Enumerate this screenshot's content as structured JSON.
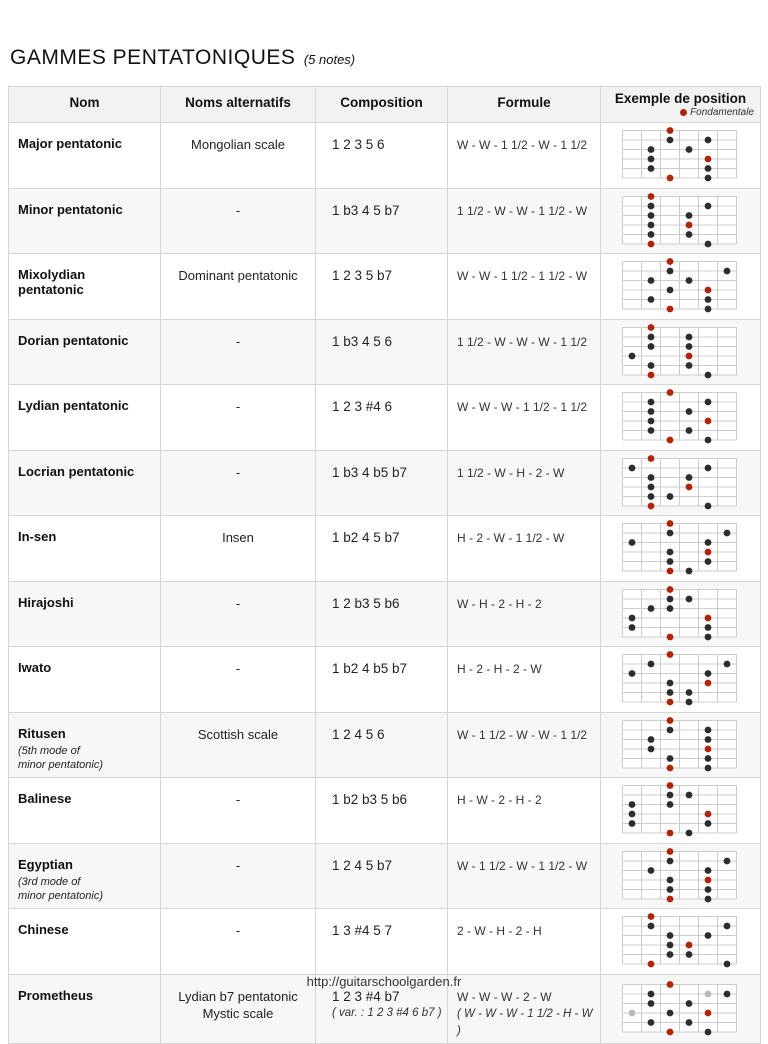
{
  "title": "GAMMES PENTATONIQUES",
  "title_suffix": "(5 notes)",
  "legend_label": "Fondamentale",
  "footer": "http://guitarschoolgarden.fr",
  "colors": {
    "root": "#b02508",
    "note": "#2d2d2d",
    "variant": "#b9b9b9",
    "grid": "#cccccc"
  },
  "columns": {
    "name": "Nom",
    "alt": "Noms alternatifs",
    "composition": "Composition",
    "formula": "Formule",
    "diagram": "Exemple de position"
  },
  "rows": [
    {
      "name": "Major pentatonic",
      "subtitle": "",
      "alt": "Mongolian scale",
      "alt2": "",
      "composition": "1 2 3 5 6",
      "composition_var": "",
      "formula": "W - W - 1 1/2 - W - 1 1/2",
      "formula_var": "",
      "diagram": [
        [
          1,
          3,
          "R"
        ],
        [
          2,
          3,
          "N"
        ],
        [
          2,
          5,
          "N"
        ],
        [
          3,
          2,
          "N"
        ],
        [
          3,
          4,
          "N"
        ],
        [
          4,
          2,
          "N"
        ],
        [
          4,
          5,
          "R"
        ],
        [
          5,
          2,
          "N"
        ],
        [
          5,
          5,
          "N"
        ],
        [
          6,
          3,
          "R"
        ],
        [
          6,
          5,
          "N"
        ]
      ]
    },
    {
      "name": "Minor pentatonic",
      "subtitle": "",
      "alt": "-",
      "alt2": "",
      "composition": "1 b3 4 5 b7",
      "composition_var": "",
      "formula": "1 1/2 - W - W - 1 1/2 - W",
      "formula_var": "",
      "diagram": [
        [
          1,
          2,
          "R"
        ],
        [
          2,
          2,
          "N"
        ],
        [
          2,
          5,
          "N"
        ],
        [
          3,
          2,
          "N"
        ],
        [
          3,
          4,
          "N"
        ],
        [
          4,
          2,
          "N"
        ],
        [
          4,
          4,
          "R"
        ],
        [
          5,
          2,
          "N"
        ],
        [
          5,
          4,
          "N"
        ],
        [
          6,
          2,
          "R"
        ],
        [
          6,
          5,
          "N"
        ]
      ]
    },
    {
      "name": "Mixolydian pentatonic",
      "subtitle": "",
      "alt": "Dominant pentatonic",
      "alt2": "",
      "composition": "1 2 3 5 b7",
      "composition_var": "",
      "formula": "W - W - 1 1/2 - 1 1/2 - W",
      "formula_var": "",
      "diagram": [
        [
          1,
          3,
          "R"
        ],
        [
          2,
          3,
          "N"
        ],
        [
          2,
          6,
          "N"
        ],
        [
          3,
          2,
          "N"
        ],
        [
          3,
          4,
          "N"
        ],
        [
          4,
          3,
          "N"
        ],
        [
          4,
          5,
          "R"
        ],
        [
          5,
          2,
          "N"
        ],
        [
          5,
          5,
          "N"
        ],
        [
          6,
          3,
          "R"
        ],
        [
          6,
          5,
          "N"
        ]
      ]
    },
    {
      "name": "Dorian pentatonic",
      "subtitle": "",
      "alt": "-",
      "alt2": "",
      "composition": "1 b3 4 5 6",
      "composition_var": "",
      "formula": "1 1/2 - W - W - W - 1 1/2",
      "formula_var": "",
      "diagram": [
        [
          1,
          2,
          "R"
        ],
        [
          2,
          2,
          "N"
        ],
        [
          2,
          4,
          "N"
        ],
        [
          3,
          2,
          "N"
        ],
        [
          3,
          4,
          "N"
        ],
        [
          4,
          1,
          "N"
        ],
        [
          4,
          4,
          "R"
        ],
        [
          5,
          2,
          "N"
        ],
        [
          5,
          4,
          "N"
        ],
        [
          6,
          2,
          "R"
        ],
        [
          6,
          5,
          "N"
        ]
      ]
    },
    {
      "name": "Lydian pentatonic",
      "subtitle": "",
      "alt": "-",
      "alt2": "",
      "composition": "1 2 3 #4 6",
      "composition_var": "",
      "formula": "W - W - W - 1 1/2 - 1 1/2",
      "formula_var": "",
      "diagram": [
        [
          1,
          3,
          "R"
        ],
        [
          2,
          2,
          "N"
        ],
        [
          2,
          5,
          "N"
        ],
        [
          3,
          2,
          "N"
        ],
        [
          3,
          4,
          "N"
        ],
        [
          4,
          2,
          "N"
        ],
        [
          4,
          5,
          "R"
        ],
        [
          5,
          2,
          "N"
        ],
        [
          5,
          4,
          "N"
        ],
        [
          6,
          3,
          "R"
        ],
        [
          6,
          5,
          "N"
        ]
      ]
    },
    {
      "name": "Locrian pentatonic",
      "subtitle": "",
      "alt": "-",
      "alt2": "",
      "composition": "1 b3 4 b5 b7",
      "composition_var": "",
      "formula": "1 1/2 - W - H - 2 - W",
      "formula_var": "",
      "diagram": [
        [
          1,
          2,
          "R"
        ],
        [
          2,
          1,
          "N"
        ],
        [
          2,
          5,
          "N"
        ],
        [
          3,
          2,
          "N"
        ],
        [
          3,
          4,
          "N"
        ],
        [
          4,
          2,
          "N"
        ],
        [
          4,
          4,
          "R"
        ],
        [
          5,
          2,
          "N"
        ],
        [
          5,
          3,
          "N"
        ],
        [
          6,
          2,
          "R"
        ],
        [
          6,
          5,
          "N"
        ]
      ]
    },
    {
      "name": "In-sen",
      "subtitle": "",
      "alt": "Insen",
      "alt2": "",
      "composition": "1 b2 4 5 b7",
      "composition_var": "",
      "formula": "H - 2 - W - 1 1/2 - W",
      "formula_var": "",
      "diagram": [
        [
          1,
          3,
          "R"
        ],
        [
          2,
          3,
          "N"
        ],
        [
          2,
          6,
          "N"
        ],
        [
          3,
          1,
          "N"
        ],
        [
          3,
          5,
          "N"
        ],
        [
          4,
          3,
          "N"
        ],
        [
          4,
          5,
          "R"
        ],
        [
          5,
          3,
          "N"
        ],
        [
          5,
          5,
          "N"
        ],
        [
          6,
          3,
          "R"
        ],
        [
          6,
          4,
          "N"
        ]
      ]
    },
    {
      "name": "Hirajoshi",
      "subtitle": "",
      "alt": "-",
      "alt2": "",
      "composition": "1 2 b3 5 b6",
      "composition_var": "",
      "formula": "W - H - 2 - H - 2",
      "formula_var": "",
      "diagram": [
        [
          1,
          3,
          "R"
        ],
        [
          2,
          3,
          "N"
        ],
        [
          2,
          4,
          "N"
        ],
        [
          3,
          2,
          "N"
        ],
        [
          3,
          3,
          "N"
        ],
        [
          4,
          1,
          "N"
        ],
        [
          4,
          5,
          "R"
        ],
        [
          5,
          1,
          "N"
        ],
        [
          5,
          5,
          "N"
        ],
        [
          6,
          3,
          "R"
        ],
        [
          6,
          5,
          "N"
        ]
      ]
    },
    {
      "name": "Iwato",
      "subtitle": "",
      "alt": "-",
      "alt2": "",
      "composition": "1 b2 4 b5 b7",
      "composition_var": "",
      "formula": "H - 2 - H - 2 - W",
      "formula_var": "",
      "diagram": [
        [
          1,
          3,
          "R"
        ],
        [
          2,
          2,
          "N"
        ],
        [
          2,
          6,
          "N"
        ],
        [
          3,
          1,
          "N"
        ],
        [
          3,
          5,
          "N"
        ],
        [
          4,
          3,
          "N"
        ],
        [
          4,
          5,
          "R"
        ],
        [
          5,
          3,
          "N"
        ],
        [
          5,
          4,
          "N"
        ],
        [
          6,
          3,
          "R"
        ],
        [
          6,
          4,
          "N"
        ]
      ]
    },
    {
      "name": "Ritusen",
      "subtitle": "(5th mode of\nminor pentatonic)",
      "alt": "Scottish scale",
      "alt2": "",
      "composition": "1 2 4 5 6",
      "composition_var": "",
      "formula": "W - 1 1/2 - W - W - 1 1/2",
      "formula_var": "",
      "diagram": [
        [
          1,
          3,
          "R"
        ],
        [
          2,
          3,
          "N"
        ],
        [
          2,
          5,
          "N"
        ],
        [
          3,
          2,
          "N"
        ],
        [
          3,
          5,
          "N"
        ],
        [
          4,
          2,
          "N"
        ],
        [
          4,
          5,
          "R"
        ],
        [
          5,
          3,
          "N"
        ],
        [
          5,
          5,
          "N"
        ],
        [
          6,
          3,
          "R"
        ],
        [
          6,
          5,
          "N"
        ]
      ]
    },
    {
      "name": "Balinese",
      "subtitle": "",
      "alt": "-",
      "alt2": "",
      "composition": "1 b2 b3 5 b6",
      "composition_var": "",
      "formula": "H - W - 2 - H - 2",
      "formula_var": "",
      "diagram": [
        [
          1,
          3,
          "R"
        ],
        [
          2,
          3,
          "N"
        ],
        [
          2,
          4,
          "N"
        ],
        [
          3,
          1,
          "N"
        ],
        [
          3,
          3,
          "N"
        ],
        [
          4,
          1,
          "N"
        ],
        [
          4,
          5,
          "R"
        ],
        [
          5,
          1,
          "N"
        ],
        [
          5,
          5,
          "N"
        ],
        [
          6,
          3,
          "R"
        ],
        [
          6,
          4,
          "N"
        ]
      ]
    },
    {
      "name": "Egyptian",
      "subtitle": "(3rd mode of\nminor pentatonic)",
      "alt": "-",
      "alt2": "",
      "composition": "1 2 4 5 b7",
      "composition_var": "",
      "formula": "W - 1 1/2 - W - 1 1/2 - W",
      "formula_var": "",
      "diagram": [
        [
          1,
          3,
          "R"
        ],
        [
          2,
          3,
          "N"
        ],
        [
          2,
          6,
          "N"
        ],
        [
          3,
          2,
          "N"
        ],
        [
          3,
          5,
          "N"
        ],
        [
          4,
          3,
          "N"
        ],
        [
          4,
          5,
          "R"
        ],
        [
          5,
          3,
          "N"
        ],
        [
          5,
          5,
          "N"
        ],
        [
          6,
          3,
          "R"
        ],
        [
          6,
          5,
          "N"
        ]
      ]
    },
    {
      "name": "Chinese",
      "subtitle": "",
      "alt": "-",
      "alt2": "",
      "composition": "1 3 #4 5 7",
      "composition_var": "",
      "formula": "2 - W - H - 2 - H",
      "formula_var": "",
      "diagram": [
        [
          1,
          2,
          "R"
        ],
        [
          2,
          2,
          "N"
        ],
        [
          2,
          6,
          "N"
        ],
        [
          3,
          3,
          "N"
        ],
        [
          3,
          5,
          "N"
        ],
        [
          4,
          3,
          "N"
        ],
        [
          4,
          4,
          "R"
        ],
        [
          5,
          3,
          "N"
        ],
        [
          5,
          4,
          "N"
        ],
        [
          6,
          2,
          "R"
        ],
        [
          6,
          6,
          "N"
        ]
      ]
    },
    {
      "name": "Prometheus",
      "subtitle": "",
      "alt": "Lydian b7 pentatonic",
      "alt2": "Mystic scale",
      "composition": "1 2 3 #4 b7",
      "composition_var": "( var. : 1 2 3 #4 6 b7 )",
      "formula": "W - W - W - 2 - W",
      "formula_var": "( W - W - W - 1 1/2 - H - W )",
      "diagram": [
        [
          1,
          3,
          "R"
        ],
        [
          2,
          2,
          "N"
        ],
        [
          2,
          5,
          "V"
        ],
        [
          2,
          6,
          "N"
        ],
        [
          3,
          2,
          "N"
        ],
        [
          3,
          4,
          "N"
        ],
        [
          4,
          1,
          "V"
        ],
        [
          4,
          3,
          "N"
        ],
        [
          4,
          5,
          "R"
        ],
        [
          5,
          2,
          "N"
        ],
        [
          5,
          4,
          "N"
        ],
        [
          6,
          3,
          "R"
        ],
        [
          6,
          5,
          "N"
        ]
      ]
    }
  ]
}
